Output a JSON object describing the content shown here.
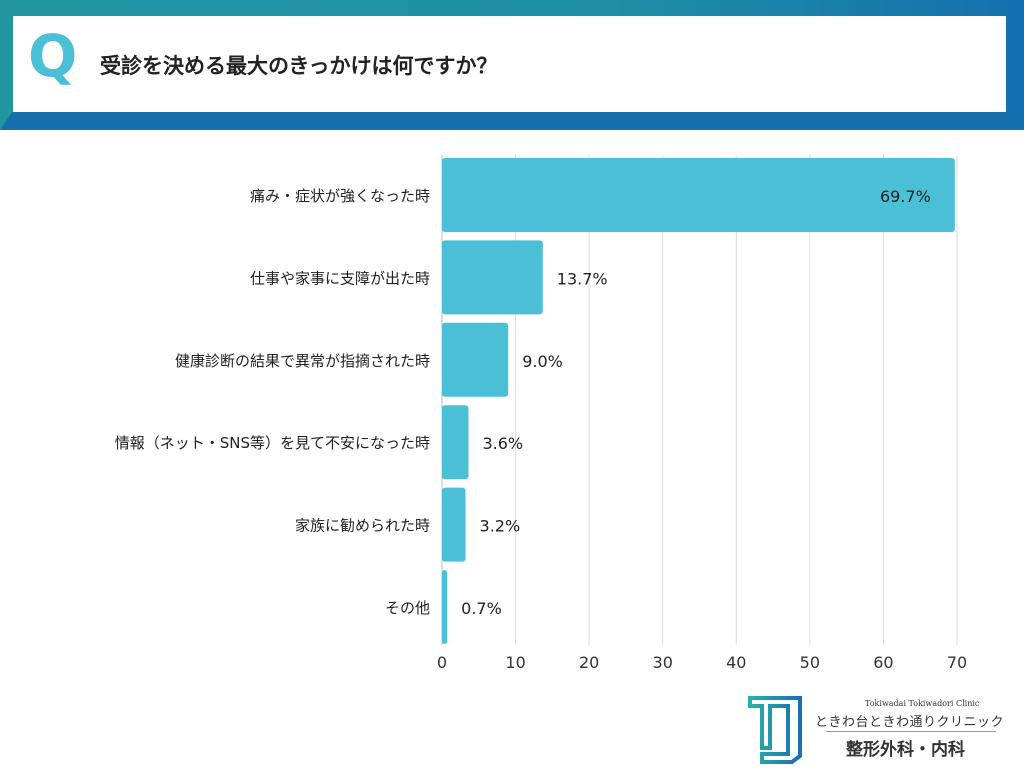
{
  "header": {
    "q_mark": "Q",
    "question": "受診を決める最大のきっかけは何ですか？"
  },
  "chart_data": {
    "type": "bar",
    "orientation": "horizontal",
    "categories": [
      "痛み・症状が強くなった時",
      "仕事や家事に支障が出た時",
      "健康診断の結果で異常が指摘された時",
      "情報（ネット・SNS等）を見て不安になった時",
      "家族に勧められた時",
      "その他"
    ],
    "values": [
      69.7,
      13.7,
      9.0,
      3.6,
      3.2,
      0.7
    ],
    "data_labels": [
      "69.7%",
      "13.7%",
      "9.0%",
      "3.6%",
      "3.2%",
      "0.7%"
    ],
    "xlim": [
      0,
      70
    ],
    "xticks": [
      "0",
      "10",
      "20",
      "30",
      "40",
      "50",
      "60",
      "70"
    ],
    "grid": true,
    "bar_color": "#4bbfd6"
  },
  "logo": {
    "name_en": "Tokiwadai Tokiwadori Clinic",
    "name_jp": "ときわ台ときわ通りクリニック",
    "departments": "整形外科・内科"
  }
}
